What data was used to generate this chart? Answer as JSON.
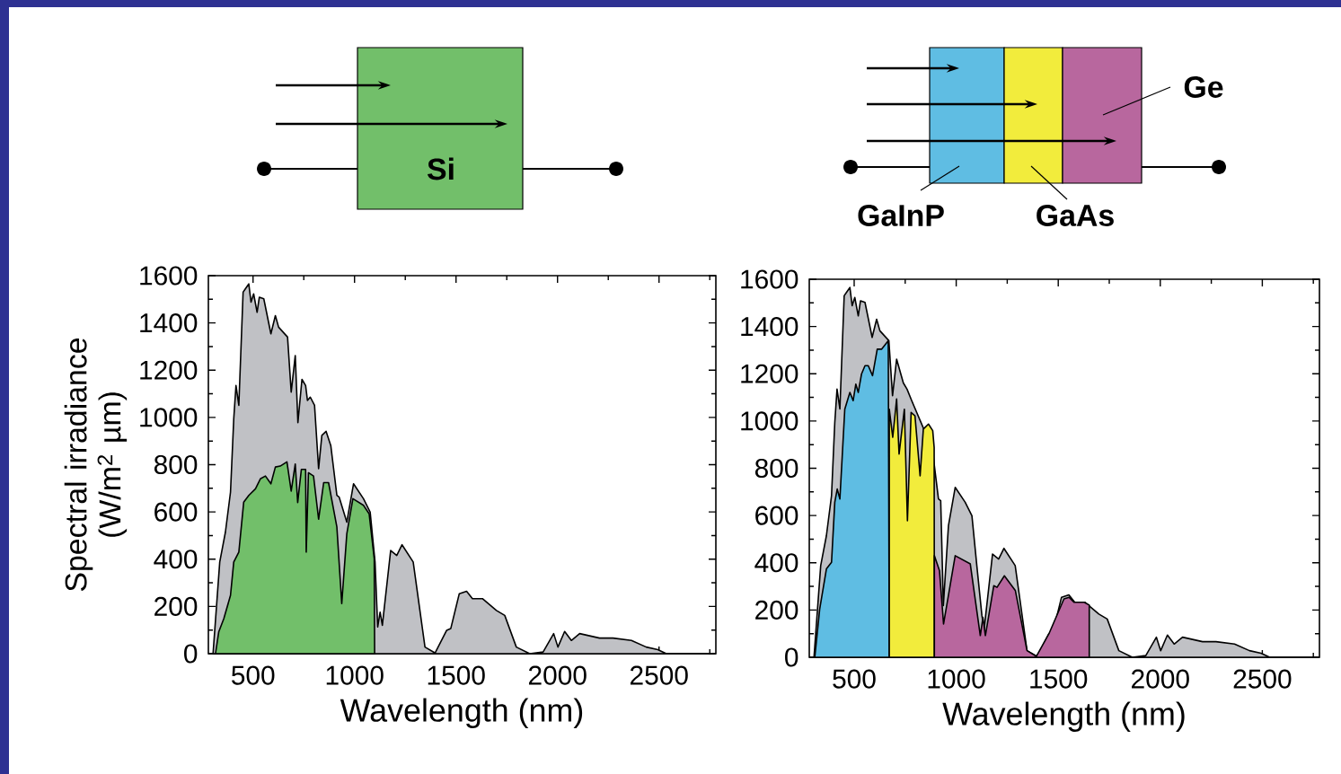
{
  "chart_data": [
    {
      "type": "area",
      "xlabel": "Wavelength (nm)",
      "ylabel": "Spectral irradiance (W/m$^{2}$ µm)",
      "annotations": [
        "Si"
      ],
      "xlim": [
        280,
        2780
      ],
      "ylim": [
        0,
        1600
      ],
      "xticks": [
        500,
        {
          "value": 750,
          "label": null
        },
        1000,
        {
          "value": 1250,
          "label": null
        },
        1500,
        {
          "value": 1750,
          "label": null
        },
        2000,
        {
          "value": 2250,
          "label": null
        },
        2500,
        {
          "value": 2750,
          "label": null
        }
      ],
      "yticks": [
        0,
        {
          "value": 100,
          "label": null
        },
        200,
        {
          "value": 300,
          "label": null
        },
        400,
        {
          "value": 500,
          "label": null
        },
        600,
        {
          "value": 700,
          "label": null
        },
        800,
        {
          "value": 900,
          "label": null
        },
        1000,
        {
          "value": 1100,
          "label": null
        },
        1200,
        {
          "value": 1300,
          "label": null
        },
        1400,
        {
          "value": 1500,
          "label": null
        },
        1600
      ],
      "series": [
        {
          "color": "#c0c1c5",
          "x": [
            303,
            336,
            364,
            389,
            405,
            416,
            430,
            451,
            462,
            479,
            490,
            503,
            520,
            531,
            553,
            588,
            610,
            626,
            670,
            688,
            708,
            721,
            741,
            759,
            762,
            768,
            782,
            803,
            823,
            839,
            860,
            883,
            913,
            924,
            937,
            962,
            995,
            1044,
            1077,
            1101,
            1114,
            1126,
            1137,
            1178,
            1208,
            1234,
            1289,
            1347,
            1397,
            1454,
            1474,
            1516,
            1552,
            1581,
            1630,
            1699,
            1740,
            1797,
            1863,
            1929,
            1981,
            2002,
            2035,
            2068,
            2109,
            2207,
            2273,
            2364,
            2437,
            2494,
            2536,
            2770
          ],
          "values": [
            0,
            388,
            515,
            684,
            994,
            1135,
            1051,
            1530,
            1544,
            1565,
            1488,
            1523,
            1445,
            1509,
            1502,
            1354,
            1431,
            1382,
            1340,
            1107,
            1262,
            978,
            1161,
            1135,
            null,
            1072,
            1086,
            1051,
            783,
            924,
            941,
            881,
            670,
            663,
            null,
            557,
            719,
            656,
            599,
            388,
            113,
            176,
            120,
            437,
            416,
            461,
            388,
            28,
            3,
            99,
            106,
            254,
            264,
            233,
            233,
            183,
            162,
            28,
            0,
            7,
            85,
            28,
            94,
            56,
            85,
            66,
            66,
            56,
            28,
            17,
            0,
            0
          ]
        },
        {
          "color": "#72bf6a",
          "x": [
            315,
            331,
            356,
            389,
            405,
            430,
            454,
            479,
            512,
            536,
            561,
            588,
            610,
            634,
            667,
            688,
            708,
            720,
            738,
            759,
            762,
            773,
            798,
            823,
            848,
            872,
            913,
            937,
            962,
            992,
            1044,
            1072,
            1097,
            1099
          ],
          "values": [
            0,
            92,
            148,
            247,
            388,
            430,
            641,
            670,
            698,
            740,
            752,
            719,
            790,
            794,
            812,
            688,
            803,
            640,
            780,
            780,
            430,
            766,
            752,
            569,
            724,
            724,
            536,
            212,
            508,
            656,
            628,
            592,
            402,
            0
          ]
        }
      ]
    },
    {
      "type": "area",
      "xlabel": "Wavelength (nm)",
      "annotations": [
        "GaInP",
        "GaAs",
        "Ge"
      ],
      "xlim": [
        280,
        2780
      ],
      "ylim": [
        0,
        1600
      ],
      "xticks": [
        500,
        {
          "value": 750,
          "label": null
        },
        1000,
        {
          "value": 1250,
          "label": null
        },
        1500,
        {
          "value": 1750,
          "label": null
        },
        2000,
        {
          "value": 2250,
          "label": null
        },
        2500,
        {
          "value": 2750,
          "label": null
        }
      ],
      "yticks": [
        0,
        {
          "value": 100,
          "label": null
        },
        200,
        {
          "value": 300,
          "label": null
        },
        400,
        {
          "value": 500,
          "label": null
        },
        600,
        {
          "value": 700,
          "label": null
        },
        800,
        {
          "value": 900,
          "label": null
        },
        1000,
        {
          "value": 1100,
          "label": null
        },
        1200,
        {
          "value": 1300,
          "label": null
        },
        1400,
        {
          "value": 1500,
          "label": null
        },
        1600
      ],
      "series": [
        {
          "color": "#c0c1c5",
          "x": [
            303,
            336,
            364,
            389,
            405,
            416,
            430,
            451,
            462,
            479,
            490,
            503,
            520,
            531,
            553,
            588,
            610,
            626,
            670,
            688,
            708,
            721,
            741,
            759,
            762,
            768,
            782,
            803,
            823,
            839,
            860,
            883,
            913,
            924,
            937,
            962,
            995,
            1044,
            1077,
            1101,
            1114,
            1126,
            1137,
            1178,
            1208,
            1234,
            1289,
            1347,
            1397,
            1454,
            1474,
            1516,
            1552,
            1581,
            1630,
            1699,
            1740,
            1797,
            1863,
            1929,
            1981,
            2002,
            2035,
            2068,
            2109,
            2207,
            2273,
            2364,
            2437,
            2494,
            2536,
            2770
          ],
          "values": [
            0,
            388,
            515,
            684,
            994,
            1135,
            1051,
            1530,
            1544,
            1565,
            1488,
            1523,
            1445,
            1509,
            1502,
            1354,
            1431,
            1382,
            1340,
            1107,
            1262,
            null,
            1161,
            1135,
            null,
            null,
            1086,
            null,
            null,
            null,
            null,
            881,
            670,
            663,
            219,
            557,
            719,
            656,
            599,
            388,
            null,
            176,
            120,
            437,
            416,
            461,
            388,
            28,
            3,
            99,
            106,
            254,
            264,
            233,
            233,
            183,
            162,
            28,
            0,
            7,
            85,
            28,
            94,
            56,
            85,
            66,
            66,
            56,
            28,
            17,
            0,
            0
          ]
        },
        {
          "color": "#5fbde3",
          "x": [
            307,
            331,
            364,
            389,
            405,
            417,
            430,
            454,
            479,
            495,
            508,
            520,
            536,
            553,
            569,
            590,
            613,
            634,
            667,
            672
          ],
          "values": [
            0,
            204,
            374,
            402,
            656,
            712,
            670,
            1050,
            1121,
            1086,
            1156,
            1121,
            1199,
            1234,
            1234,
            1192,
            1304,
            1304,
            1340,
            0
          ]
        },
        {
          "color": "#f2ec3c",
          "x": [
            672,
            672,
            689,
            708,
            720,
            746,
            761,
            779,
            798,
            823,
            839,
            864,
            885,
            892,
            893
          ],
          "values": [
            0,
            1050,
            931,
            1093,
            860,
            1050,
            578,
            1036,
            1022,
            768,
            966,
            987,
            959,
            888,
            0
          ]
        },
        {
          "color": "#b8679e",
          "x": [
            893,
            893,
            918,
            938,
            995,
            1069,
            1118,
            1131,
            1143,
            1184,
            1200,
            1236,
            1290,
            1347,
            1393,
            1454,
            1528,
            1553,
            1577,
            1602,
            1627,
            1652,
            1652
          ],
          "values": [
            0,
            430,
            367,
            141,
            430,
            395,
            92,
            169,
            92,
            303,
            296,
            345,
            282,
            28,
            4,
            99,
            247,
            254,
            233,
            233,
            233,
            221,
            0
          ]
        }
      ]
    }
  ]
}
